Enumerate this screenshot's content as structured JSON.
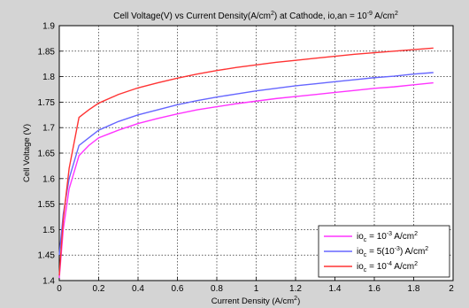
{
  "chart_data": {
    "type": "line",
    "title": {
      "text": "Cell Voltage(V) vs Current Density(A/cm",
      "sup": "2",
      "text2": ") at Cathode, io,an = 10",
      "sup2": "-9",
      "text3": " A/cm",
      "sup3": "2"
    },
    "xlabel": {
      "text": "Current Density (A/cm",
      "sup": "2",
      "text2": ")"
    },
    "ylabel": "Cell Voltage (V)",
    "xlim": [
      0,
      2
    ],
    "ylim": [
      1.4,
      1.9
    ],
    "x_ticks": [
      "0",
      "0.2",
      "0.4",
      "0.6",
      "0.8",
      "1",
      "1.2",
      "1.4",
      "1.6",
      "1.8",
      "2"
    ],
    "y_ticks": [
      "1.4",
      "1.45",
      "1.5",
      "1.55",
      "1.6",
      "1.65",
      "1.7",
      "1.75",
      "1.8",
      "1.85",
      "1.9"
    ],
    "grid": true,
    "legend_position": "bottom-right",
    "series": [
      {
        "legend": {
          "pre": "io",
          "sub": "c",
          "mid": " = 10",
          "sup": "-3",
          "post": " A/cm",
          "sup2": "2"
        },
        "color": "#ff33ff",
        "x": [
          0,
          0.02,
          0.05,
          0.1,
          0.15,
          0.2,
          0.3,
          0.4,
          0.5,
          0.6,
          0.7,
          0.8,
          0.9,
          1.0,
          1.1,
          1.2,
          1.3,
          1.4,
          1.5,
          1.6,
          1.7,
          1.8,
          1.9
        ],
        "y": [
          1.405,
          1.5,
          1.58,
          1.645,
          1.665,
          1.68,
          1.695,
          1.708,
          1.718,
          1.727,
          1.735,
          1.741,
          1.747,
          1.752,
          1.757,
          1.761,
          1.765,
          1.769,
          1.773,
          1.777,
          1.78,
          1.784,
          1.788
        ]
      },
      {
        "legend": {
          "pre": "io",
          "sub": "c",
          "mid": " = 5(10",
          "sup": "-3",
          "post": ") A/cm",
          "sup2": "2"
        },
        "color": "#6666ff",
        "x": [
          0,
          0.02,
          0.05,
          0.1,
          0.15,
          0.2,
          0.3,
          0.4,
          0.5,
          0.6,
          0.7,
          0.8,
          0.9,
          1.0,
          1.1,
          1.2,
          1.3,
          1.4,
          1.5,
          1.6,
          1.7,
          1.8,
          1.9
        ],
        "y": [
          1.45,
          1.53,
          1.6,
          1.665,
          1.68,
          1.695,
          1.712,
          1.725,
          1.735,
          1.745,
          1.753,
          1.76,
          1.766,
          1.772,
          1.777,
          1.782,
          1.786,
          1.79,
          1.794,
          1.798,
          1.801,
          1.805,
          1.808
        ]
      },
      {
        "legend": {
          "pre": "io",
          "sub": "c",
          "mid": " = 10",
          "sup": "-4",
          "post": " A/cm",
          "sup2": "2"
        },
        "color": "#ff3333",
        "x": [
          0,
          0.02,
          0.05,
          0.1,
          0.15,
          0.2,
          0.3,
          0.4,
          0.5,
          0.6,
          0.7,
          0.8,
          0.9,
          1.0,
          1.1,
          1.2,
          1.3,
          1.4,
          1.5,
          1.6,
          1.7,
          1.8,
          1.9
        ],
        "y": [
          1.41,
          1.52,
          1.62,
          1.72,
          1.735,
          1.748,
          1.765,
          1.778,
          1.788,
          1.797,
          1.805,
          1.812,
          1.818,
          1.823,
          1.828,
          1.832,
          1.836,
          1.84,
          1.844,
          1.847,
          1.85,
          1.853,
          1.856
        ]
      }
    ]
  }
}
